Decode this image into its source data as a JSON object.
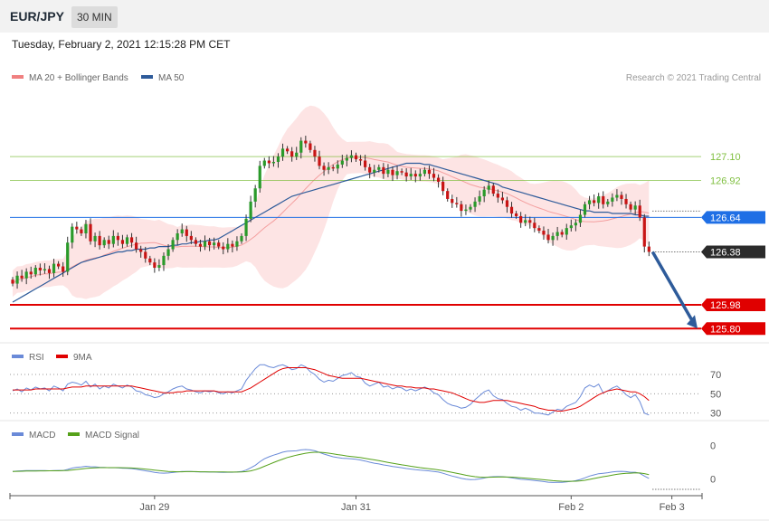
{
  "header": {
    "symbol": "EUR/JPY",
    "timeframe": "30 MIN",
    "timestamp": "Tuesday, February 2, 2021 12:15:28 PM CET"
  },
  "credit": "Research © 2021 Trading Central",
  "colors": {
    "bollinger": "#f08080",
    "ma50": "#2e5b9a",
    "support": "#e00000",
    "resistance": "#7fbf3f",
    "pivot": "#1f6fe5",
    "rsi": "#6a8ad8",
    "rsi_ma": "#e00000",
    "macd": "#6a8ad8",
    "macd_signal": "#55a11a",
    "candle_up": "#2a9a2a",
    "candle_down": "#c81414"
  },
  "chart_data": [
    {
      "type": "candlestick",
      "legend": [
        {
          "name": "MA 20 + Bollinger Bands",
          "color": "#f08080"
        },
        {
          "name": "MA 50",
          "color": "#2e5b9a"
        }
      ],
      "legend_position": "top-left",
      "ylim": [
        125.72,
        127.6
      ],
      "x_ticks": [
        {
          "label": "Jan 29",
          "index": 31
        },
        {
          "label": "Jan 31",
          "index": 75
        },
        {
          "label": "Feb 2",
          "index": 122
        },
        {
          "label": "Feb 3",
          "index": 144
        }
      ],
      "levels": [
        {
          "value": 127.1,
          "label": "127.10",
          "kind": "resistance"
        },
        {
          "value": 126.92,
          "label": "126.92",
          "kind": "resistance"
        },
        {
          "value": 126.64,
          "label": "126.64",
          "kind": "pivot"
        },
        {
          "value": 126.38,
          "label": "126.38",
          "kind": "last"
        },
        {
          "value": 125.98,
          "label": "125.98",
          "kind": "support"
        },
        {
          "value": 125.8,
          "label": "125.80",
          "kind": "support"
        }
      ],
      "candles_count": 140,
      "closes": [
        126.14,
        126.2,
        126.18,
        126.23,
        126.21,
        126.26,
        126.24,
        126.25,
        126.22,
        126.29,
        126.27,
        126.23,
        126.45,
        126.57,
        126.55,
        126.52,
        126.59,
        126.46,
        126.5,
        126.43,
        126.47,
        126.44,
        126.5,
        126.47,
        126.44,
        126.49,
        126.45,
        126.4,
        126.38,
        126.33,
        126.3,
        126.26,
        126.28,
        126.35,
        126.4,
        126.47,
        126.52,
        126.55,
        126.5,
        126.47,
        126.44,
        126.42,
        126.46,
        126.43,
        126.45,
        126.42,
        126.4,
        126.44,
        126.42,
        126.46,
        126.5,
        126.63,
        126.76,
        126.86,
        127.03,
        127.07,
        127.05,
        127.06,
        127.1,
        127.16,
        127.14,
        127.1,
        127.13,
        127.22,
        127.2,
        127.15,
        127.1,
        127.03,
        127.0,
        127.02,
        127.01,
        127.04,
        127.07,
        127.09,
        127.11,
        127.08,
        127.07,
        127.02,
        126.98,
        127.0,
        127.02,
        126.97,
        127.0,
        126.96,
        126.99,
        126.98,
        126.95,
        126.97,
        126.95,
        126.97,
        127.0,
        126.97,
        126.94,
        126.91,
        126.84,
        126.78,
        126.75,
        126.74,
        126.69,
        126.7,
        126.72,
        126.76,
        126.8,
        126.85,
        126.88,
        126.82,
        126.79,
        126.77,
        126.72,
        126.67,
        126.65,
        126.6,
        126.62,
        126.6,
        126.56,
        126.54,
        126.51,
        126.47,
        126.5,
        126.53,
        126.51,
        126.56,
        126.58,
        126.6,
        126.66,
        126.74,
        126.77,
        126.75,
        126.8,
        126.74,
        126.76,
        126.79,
        126.81,
        126.78,
        126.74,
        126.7,
        126.73,
        126.64,
        126.42,
        126.38
      ],
      "ma50": [
        126.0,
        126.02,
        126.04,
        126.06,
        126.08,
        126.1,
        126.12,
        126.14,
        126.16,
        126.18,
        126.2,
        126.22,
        126.24,
        126.26,
        126.28,
        126.3,
        126.31,
        126.32,
        126.33,
        126.34,
        126.35,
        126.36,
        126.37,
        126.38,
        126.38,
        126.39,
        126.39,
        126.4,
        126.4,
        126.4,
        126.41,
        126.41,
        126.42,
        126.42,
        126.42,
        126.43,
        126.43,
        126.44,
        126.44,
        126.45,
        126.45,
        126.46,
        126.46,
        126.47,
        126.47,
        126.48,
        126.5,
        126.52,
        126.54,
        126.56,
        126.58,
        126.6,
        126.62,
        126.64,
        126.66,
        126.68,
        126.7,
        126.72,
        126.74,
        126.76,
        126.78,
        126.8,
        126.81,
        126.82,
        126.83,
        126.84,
        126.85,
        126.86,
        126.87,
        126.88,
        126.89,
        126.9,
        126.91,
        126.92,
        126.93,
        126.94,
        126.95,
        126.96,
        126.97,
        126.98,
        126.99,
        127.0,
        127.01,
        127.02,
        127.03,
        127.04,
        127.05,
        127.05,
        127.05,
        127.05,
        127.04,
        127.04,
        127.03,
        127.02,
        127.01,
        127.0,
        126.99,
        126.98,
        126.97,
        126.96,
        126.95,
        126.94,
        126.93,
        126.92,
        126.91,
        126.9,
        126.89,
        126.87,
        126.86,
        126.85,
        126.84,
        126.83,
        126.82,
        126.81,
        126.8,
        126.79,
        126.78,
        126.77,
        126.76,
        126.75,
        126.74,
        126.73,
        126.72,
        126.71,
        126.7,
        126.69,
        126.69,
        126.68,
        126.68,
        126.68,
        126.68,
        126.67,
        126.67,
        126.67,
        126.67,
        126.67,
        126.66,
        126.66,
        126.65,
        126.65
      ]
    },
    {
      "type": "line",
      "legend": [
        {
          "name": "RSI",
          "color": "#6a8ad8"
        },
        {
          "name": "9MA",
          "color": "#e00000"
        }
      ],
      "legend_position": "top-left",
      "ylim": [
        25,
        85
      ],
      "y_ticks": [
        "70",
        "50",
        "30"
      ],
      "series": [
        {
          "name": "RSI",
          "values": [
            53,
            55,
            52,
            56,
            54,
            57,
            55,
            56,
            53,
            58,
            56,
            53,
            60,
            62,
            61,
            59,
            63,
            57,
            60,
            55,
            58,
            56,
            60,
            58,
            56,
            59,
            57,
            53,
            52,
            49,
            48,
            46,
            47,
            50,
            52,
            55,
            57,
            58,
            55,
            54,
            52,
            51,
            53,
            52,
            53,
            51,
            50,
            52,
            51,
            53,
            55,
            64,
            70,
            76,
            80,
            80,
            78,
            77,
            79,
            80,
            78,
            75,
            76,
            80,
            78,
            73,
            70,
            65,
            62,
            64,
            63,
            66,
            69,
            70,
            72,
            68,
            67,
            61,
            58,
            60,
            62,
            57,
            58,
            55,
            57,
            56,
            53,
            55,
            53,
            55,
            57,
            55,
            51,
            49,
            44,
            40,
            38,
            37,
            35,
            36,
            39,
            44,
            48,
            52,
            54,
            48,
            45,
            44,
            40,
            37,
            36,
            33,
            35,
            33,
            30,
            30,
            29,
            28,
            31,
            34,
            33,
            37,
            39,
            41,
            47,
            56,
            59,
            57,
            60,
            51,
            53,
            56,
            58,
            54,
            49,
            46,
            49,
            42,
            30,
            28
          ]
        },
        {
          "name": "9MA",
          "values": [
            54,
            54,
            54,
            54,
            54,
            55,
            55,
            55,
            55,
            55,
            55,
            55,
            56,
            57,
            57,
            57,
            58,
            58,
            58,
            58,
            58,
            58,
            58,
            58,
            58,
            58,
            58,
            57,
            56,
            55,
            54,
            53,
            52,
            51,
            51,
            51,
            52,
            52,
            53,
            53,
            53,
            53,
            53,
            53,
            53,
            52,
            52,
            52,
            52,
            52,
            52,
            54,
            56,
            59,
            62,
            65,
            68,
            71,
            74,
            76,
            77,
            77,
            77,
            77,
            77,
            76,
            75,
            73,
            71,
            69,
            68,
            67,
            66,
            66,
            66,
            66,
            66,
            65,
            64,
            63,
            62,
            61,
            60,
            59,
            58,
            58,
            57,
            57,
            56,
            56,
            56,
            55,
            55,
            54,
            53,
            52,
            51,
            49,
            47,
            45,
            43,
            42,
            41,
            41,
            42,
            43,
            43,
            43,
            43,
            42,
            41,
            40,
            39,
            38,
            37,
            35,
            34,
            33,
            33,
            32,
            32,
            33,
            34,
            35,
            37,
            40,
            43,
            46,
            49,
            51,
            53,
            54,
            55,
            54,
            53,
            52,
            52,
            50,
            47,
            43
          ]
        }
      ]
    },
    {
      "type": "line",
      "legend": [
        {
          "name": "MACD",
          "color": "#6a8ad8"
        },
        {
          "name": "MACD Signal",
          "color": "#55a11a"
        }
      ],
      "legend_position": "top-left",
      "ylim": [
        -0.2,
        0.3
      ],
      "y_ticks": [
        "0",
        "0"
      ],
      "series": [
        {
          "name": "MACD",
          "values": [
            0.0,
            0.004,
            0.006,
            0.007,
            0.007,
            0.008,
            0.008,
            0.007,
            0.006,
            0.008,
            0.009,
            0.008,
            0.018,
            0.03,
            0.037,
            0.04,
            0.046,
            0.042,
            0.041,
            0.037,
            0.036,
            0.033,
            0.034,
            0.032,
            0.029,
            0.028,
            0.025,
            0.019,
            0.013,
            0.006,
            -0.001,
            -0.009,
            -0.014,
            -0.015,
            -0.014,
            -0.01,
            -0.005,
            -0.001,
            0.0,
            -0.001,
            -0.003,
            -0.005,
            -0.005,
            -0.006,
            -0.006,
            -0.007,
            -0.008,
            -0.007,
            -0.007,
            -0.005,
            -0.001,
            0.012,
            0.032,
            0.055,
            0.086,
            0.113,
            0.131,
            0.145,
            0.158,
            0.172,
            0.18,
            0.182,
            0.184,
            0.192,
            0.195,
            0.192,
            0.184,
            0.17,
            0.155,
            0.143,
            0.131,
            0.123,
            0.118,
            0.115,
            0.113,
            0.108,
            0.102,
            0.093,
            0.082,
            0.073,
            0.067,
            0.058,
            0.052,
            0.044,
            0.039,
            0.033,
            0.026,
            0.021,
            0.015,
            0.011,
            0.009,
            0.005,
            0.0,
            -0.006,
            -0.016,
            -0.029,
            -0.041,
            -0.051,
            -0.062,
            -0.069,
            -0.073,
            -0.072,
            -0.067,
            -0.059,
            -0.05,
            -0.047,
            -0.046,
            -0.047,
            -0.051,
            -0.057,
            -0.063,
            -0.07,
            -0.073,
            -0.076,
            -0.081,
            -0.085,
            -0.09,
            -0.096,
            -0.098,
            -0.097,
            -0.097,
            -0.093,
            -0.088,
            -0.082,
            -0.072,
            -0.057,
            -0.041,
            -0.031,
            -0.02,
            -0.016,
            -0.011,
            -0.005,
            0.0,
            0.001,
            -0.002,
            -0.007,
            -0.007,
            -0.017,
            -0.041,
            -0.062
          ]
        },
        {
          "name": "MACD Signal",
          "values": [
            0.0,
            0.001,
            0.002,
            0.003,
            0.004,
            0.004,
            0.005,
            0.005,
            0.006,
            0.006,
            0.006,
            0.007,
            0.009,
            0.013,
            0.018,
            0.022,
            0.027,
            0.03,
            0.032,
            0.034,
            0.034,
            0.034,
            0.034,
            0.034,
            0.033,
            0.032,
            0.031,
            0.028,
            0.025,
            0.021,
            0.017,
            0.012,
            0.007,
            0.003,
            0.0,
            -0.002,
            -0.003,
            -0.003,
            -0.002,
            -0.002,
            -0.002,
            -0.003,
            -0.003,
            -0.004,
            -0.004,
            -0.005,
            -0.005,
            -0.006,
            -0.006,
            -0.006,
            -0.005,
            -0.002,
            0.005,
            0.015,
            0.029,
            0.046,
            0.063,
            0.079,
            0.095,
            0.11,
            0.124,
            0.135,
            0.145,
            0.154,
            0.162,
            0.168,
            0.171,
            0.171,
            0.168,
            0.163,
            0.157,
            0.15,
            0.144,
            0.138,
            0.133,
            0.128,
            0.123,
            0.117,
            0.11,
            0.103,
            0.096,
            0.088,
            0.081,
            0.073,
            0.066,
            0.059,
            0.053,
            0.046,
            0.04,
            0.034,
            0.029,
            0.024,
            0.019,
            0.014,
            0.008,
            0.0,
            -0.008,
            -0.016,
            -0.025,
            -0.034,
            -0.041,
            -0.047,
            -0.051,
            -0.053,
            -0.052,
            -0.051,
            -0.05,
            -0.049,
            -0.05,
            -0.051,
            -0.054,
            -0.057,
            -0.06,
            -0.063,
            -0.067,
            -0.07,
            -0.074,
            -0.078,
            -0.082,
            -0.085,
            -0.087,
            -0.088,
            -0.088,
            -0.087,
            -0.084,
            -0.079,
            -0.071,
            -0.063,
            -0.055,
            -0.047,
            -0.04,
            -0.033,
            -0.026,
            -0.021,
            -0.017,
            -0.015,
            -0.013,
            -0.014,
            -0.019,
            -0.028
          ]
        }
      ]
    }
  ]
}
